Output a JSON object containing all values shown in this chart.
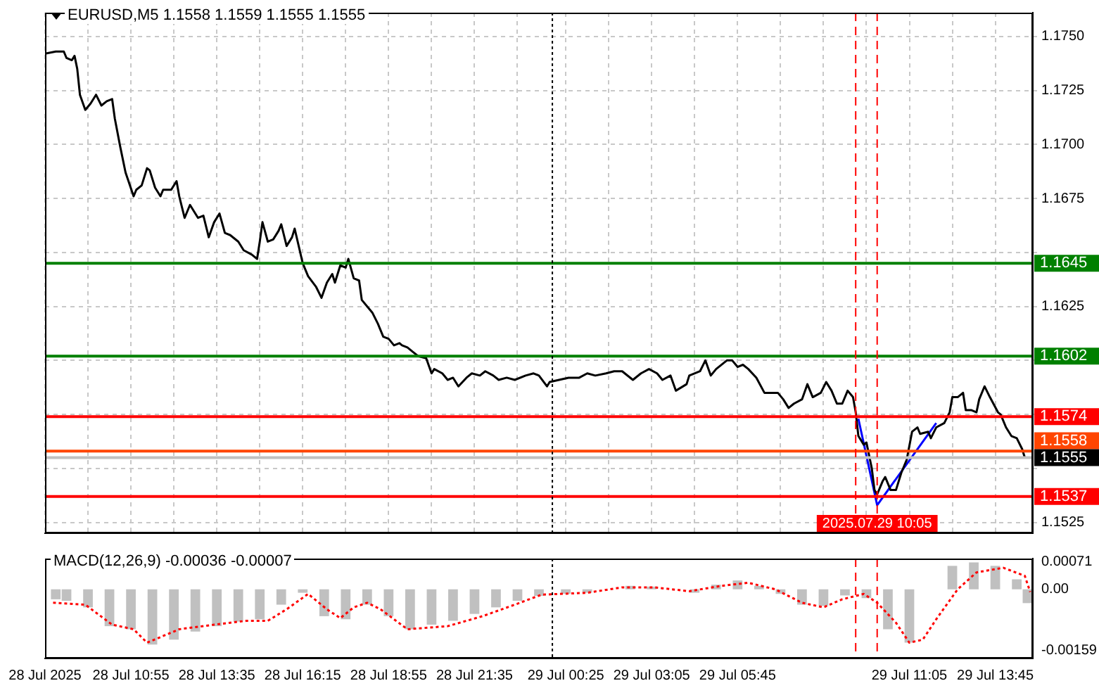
{
  "chart_data": [
    {
      "type": "line",
      "title": "EURUSD,M5 1.1558 1.1559 1.1555 1.1555",
      "grid": true,
      "tick_labels": "y",
      "xlim": [
        "2025-07-28T08:15",
        "2025-07-29T14:55"
      ],
      "ylim": [
        1.152,
        1.1761
      ],
      "xticks": [
        {
          "value": "2025-07-28T08:15",
          "label": null
        },
        {
          "value": "2025-07-28T09:35",
          "label": null
        },
        {
          "value": "2025-07-28T10:55",
          "label": null
        },
        {
          "value": "2025-07-28T12:15",
          "label": null
        },
        {
          "value": "2025-07-28T13:35",
          "label": null
        },
        {
          "value": "2025-07-28T14:55",
          "label": null
        },
        {
          "value": "2025-07-28T16:15",
          "label": null
        },
        {
          "value": "2025-07-28T17:35",
          "label": null
        },
        {
          "value": "2025-07-28T18:55",
          "label": null
        },
        {
          "value": "2025-07-28T20:15",
          "label": null
        },
        {
          "value": "2025-07-28T21:35",
          "label": null
        },
        {
          "value": "2025-07-28T22:55",
          "label": null
        },
        {
          "value": "2025-07-29T00:25",
          "label": null
        },
        {
          "value": "2025-07-29T01:45",
          "label": null
        },
        {
          "value": "2025-07-29T03:05",
          "label": null
        },
        {
          "value": "2025-07-29T04:25",
          "label": null
        },
        {
          "value": "2025-07-29T05:45",
          "label": null
        },
        {
          "value": "2025-07-29T07:05",
          "label": null
        },
        {
          "value": "2025-07-29T08:25",
          "label": null
        },
        {
          "value": "2025-07-29T09:45",
          "label": null
        },
        {
          "value": "2025-07-29T11:05",
          "label": null
        },
        {
          "value": "2025-07-29T12:25",
          "label": null
        },
        {
          "value": "2025-07-29T13:45",
          "label": null
        }
      ],
      "yticks": [
        {
          "value": 1.1525,
          "label": "1.1525"
        },
        {
          "value": 1.155,
          "label": null
        },
        {
          "value": 1.1575,
          "label": null
        },
        {
          "value": 1.16,
          "label": null
        },
        {
          "value": 1.1625,
          "label": "1.1625"
        },
        {
          "value": 1.165,
          "label": null
        },
        {
          "value": 1.1675,
          "label": "1.1675"
        },
        {
          "value": 1.17,
          "label": "1.1700"
        },
        {
          "value": 1.1725,
          "label": "1.1725"
        },
        {
          "value": 1.175,
          "label": "1.1750"
        }
      ],
      "series": [
        {
          "color": "#000000",
          "x": [
            "2025-07-28T08:15",
            "2025-07-28T08:35",
            "2025-07-28T08:50",
            "2025-07-28T08:55",
            "2025-07-28T09:05",
            "2025-07-28T09:10",
            "2025-07-28T09:15",
            "2025-07-28T09:20",
            "2025-07-28T09:30",
            "2025-07-28T09:40",
            "2025-07-28T09:50",
            "2025-07-28T10:00",
            "2025-07-28T10:10",
            "2025-07-28T10:20",
            "2025-07-28T10:25",
            "2025-07-28T10:35",
            "2025-07-28T10:45",
            "2025-07-28T11:00",
            "2025-07-28T11:05",
            "2025-07-28T11:15",
            "2025-07-28T11:25",
            "2025-07-28T11:30",
            "2025-07-28T11:40",
            "2025-07-28T11:50",
            "2025-07-28T11:55",
            "2025-07-28T12:10",
            "2025-07-28T12:20",
            "2025-07-28T12:25",
            "2025-07-28T12:35",
            "2025-07-28T12:45",
            "2025-07-28T13:00",
            "2025-07-28T13:10",
            "2025-07-28T13:20",
            "2025-07-28T13:30",
            "2025-07-28T13:40",
            "2025-07-28T13:50",
            "2025-07-28T14:00",
            "2025-07-28T14:15",
            "2025-07-28T14:25",
            "2025-07-28T14:40",
            "2025-07-28T14:50",
            "2025-07-28T14:55",
            "2025-07-28T15:00",
            "2025-07-28T15:10",
            "2025-07-28T15:20",
            "2025-07-28T15:30",
            "2025-07-28T15:35",
            "2025-07-28T15:45",
            "2025-07-28T15:55",
            "2025-07-28T16:00",
            "2025-07-28T16:15",
            "2025-07-28T16:25",
            "2025-07-28T16:40",
            "2025-07-28T16:50",
            "2025-07-28T17:00",
            "2025-07-28T17:10",
            "2025-07-28T17:15",
            "2025-07-28T17:25",
            "2025-07-28T17:35",
            "2025-07-28T17:40",
            "2025-07-28T17:50",
            "2025-07-28T18:00",
            "2025-07-28T18:05",
            "2025-07-28T18:25",
            "2025-07-28T18:35",
            "2025-07-28T18:45",
            "2025-07-28T18:55",
            "2025-07-28T19:05",
            "2025-07-28T19:15",
            "2025-07-28T19:20",
            "2025-07-28T19:30",
            "2025-07-28T19:40",
            "2025-07-28T19:50",
            "2025-07-28T20:05",
            "2025-07-28T20:15",
            "2025-07-28T20:20",
            "2025-07-28T20:35",
            "2025-07-28T20:45",
            "2025-07-28T20:55",
            "2025-07-28T21:05",
            "2025-07-28T21:20",
            "2025-07-28T21:30",
            "2025-07-28T21:45",
            "2025-07-28T21:55",
            "2025-07-28T22:10",
            "2025-07-28T22:20",
            "2025-07-28T22:35",
            "2025-07-28T22:50",
            "2025-07-28T23:10",
            "2025-07-28T23:25",
            "2025-07-28T23:35",
            "2025-07-28T23:50",
            "2025-07-28T23:55",
            "2025-07-29T00:30",
            "2025-07-29T00:50",
            "2025-07-29T01:05",
            "2025-07-29T01:20",
            "2025-07-29T01:40",
            "2025-07-29T01:55",
            "2025-07-29T02:10",
            "2025-07-29T02:30",
            "2025-07-29T02:45",
            "2025-07-29T03:00",
            "2025-07-29T03:15",
            "2025-07-29T03:25",
            "2025-07-29T03:40",
            "2025-07-29T03:50",
            "2025-07-29T04:10",
            "2025-07-29T04:15",
            "2025-07-29T04:35",
            "2025-07-29T04:45",
            "2025-07-29T04:55",
            "2025-07-29T05:05",
            "2025-07-29T05:25",
            "2025-07-29T05:35",
            "2025-07-29T05:45",
            "2025-07-29T05:55",
            "2025-07-29T06:05",
            "2025-07-29T06:20",
            "2025-07-29T06:35",
            "2025-07-29T06:45",
            "2025-07-29T07:00",
            "2025-07-29T07:10",
            "2025-07-29T07:20",
            "2025-07-29T07:30",
            "2025-07-29T07:45",
            "2025-07-29T07:55",
            "2025-07-29T08:05",
            "2025-07-29T08:20",
            "2025-07-29T08:30",
            "2025-07-29T08:40",
            "2025-07-29T08:50",
            "2025-07-29T09:00",
            "2025-07-29T09:10",
            "2025-07-29T09:20",
            "2025-07-29T09:25",
            "2025-07-29T09:30",
            "2025-07-29T09:40",
            "2025-07-29T09:45",
            "2025-07-29T09:55",
            "2025-07-29T10:00",
            "2025-07-29T10:05",
            "2025-07-29T10:15",
            "2025-07-29T10:20",
            "2025-07-29T10:30",
            "2025-07-29T10:40",
            "2025-07-29T10:50",
            "2025-07-29T11:00",
            "2025-07-29T11:10",
            "2025-07-29T11:20",
            "2025-07-29T11:25",
            "2025-07-29T11:40",
            "2025-07-29T11:45",
            "2025-07-29T11:55",
            "2025-07-29T12:10",
            "2025-07-29T12:20",
            "2025-07-29T12:25",
            "2025-07-29T12:35",
            "2025-07-29T12:45",
            "2025-07-29T12:50",
            "2025-07-29T13:00",
            "2025-07-29T13:10",
            "2025-07-29T13:15",
            "2025-07-29T13:25",
            "2025-07-29T13:35",
            "2025-07-29T13:50",
            "2025-07-29T13:55",
            "2025-07-29T14:05",
            "2025-07-29T14:15",
            "2025-07-29T14:25",
            "2025-07-29T14:35",
            "2025-07-29T14:40"
          ],
          "values": [
            1.1742,
            1.1743,
            1.1743,
            1.174,
            1.1739,
            1.1741,
            1.1735,
            1.1723,
            1.1716,
            1.1719,
            1.1723,
            1.1718,
            1.172,
            1.1721,
            1.1712,
            1.1699,
            1.1687,
            1.1676,
            1.1679,
            1.1681,
            1.1689,
            1.1688,
            1.168,
            1.1676,
            1.1679,
            1.1679,
            1.1683,
            1.1676,
            1.1666,
            1.1672,
            1.1666,
            1.1667,
            1.1657,
            1.1664,
            1.1668,
            1.1659,
            1.1658,
            1.1655,
            1.1651,
            1.1649,
            1.1647,
            1.1655,
            1.1664,
            1.1655,
            1.1656,
            1.166,
            1.1663,
            1.1653,
            1.1657,
            1.1661,
            1.1645,
            1.1639,
            1.1634,
            1.1629,
            1.1636,
            1.164,
            1.1636,
            1.1644,
            1.1643,
            1.1647,
            1.1638,
            1.1637,
            1.1628,
            1.1622,
            1.1617,
            1.1611,
            1.161,
            1.1607,
            1.1608,
            1.1607,
            1.1606,
            1.1604,
            1.1602,
            1.1601,
            1.1594,
            1.1596,
            1.1594,
            1.1591,
            1.1592,
            1.1588,
            1.1592,
            1.1594,
            1.1593,
            1.1595,
            1.1593,
            1.1591,
            1.1592,
            1.1591,
            1.1593,
            1.1594,
            1.1593,
            1.1588,
            1.159,
            1.1592,
            1.1592,
            1.1594,
            1.1593,
            1.1594,
            1.1595,
            1.1595,
            1.1591,
            1.1594,
            1.1596,
            1.1594,
            1.1591,
            1.1593,
            1.1586,
            1.1589,
            1.1593,
            1.1595,
            1.16,
            1.1593,
            1.1596,
            1.16,
            1.16,
            1.1597,
            1.1598,
            1.1596,
            1.1592,
            1.1585,
            1.1585,
            1.1585,
            1.1582,
            1.1578,
            1.158,
            1.1582,
            1.1589,
            1.1583,
            1.1585,
            1.159,
            1.1586,
            1.158,
            1.158,
            1.1586,
            1.1583,
            1.1576,
            1.1565,
            1.1561,
            1.1562,
            1.155,
            1.154,
            1.1538,
            1.1544,
            1.1546,
            1.154,
            1.154,
            1.1548,
            1.1554,
            1.1567,
            1.1569,
            1.1566,
            1.1567,
            1.1564,
            1.1569,
            1.1571,
            1.1576,
            1.1583,
            1.1583,
            1.1585,
            1.1577,
            1.1577,
            1.1576,
            1.1582,
            1.1588,
            1.1583,
            1.1576,
            1.1575,
            1.1569,
            1.1565,
            1.1564,
            1.1559,
            1.1555
          ]
        },
        {
          "color": "#0000ff",
          "x": [
            "2025-07-29T09:30",
            "2025-07-29T10:05",
            "2025-07-29T11:55"
          ],
          "values": [
            1.1573,
            1.1533,
            1.1571
          ]
        }
      ],
      "ref_lines": [
        {
          "axis": "y",
          "value": 1.1645,
          "label": "1.1645",
          "color": "#008000"
        },
        {
          "axis": "y",
          "value": 1.1602,
          "label": "1.1602",
          "color": "#008000"
        },
        {
          "axis": "y",
          "value": 1.1574,
          "label": "1.1574",
          "color": "#ff0000"
        },
        {
          "axis": "y",
          "value": 1.1558,
          "label": "1.1558",
          "color": "#ff4500"
        },
        {
          "axis": "y",
          "value": 1.1555,
          "label": "1.1555",
          "color": "#c0c0c0"
        },
        {
          "axis": "y",
          "value": 1.1537,
          "label": "1.1537",
          "color": "#ff0000"
        },
        {
          "axis": "x",
          "value": "2025-07-29T00:00",
          "color": "#000000",
          "line_style": "dotted"
        },
        {
          "axis": "x",
          "value": "2025-07-29T09:25",
          "color": "#ff0000",
          "line_style": "dashed"
        },
        {
          "axis": "x",
          "value": "2025-07-29T10:05",
          "label": "2025.07.29 10:05",
          "color": "#ff0000",
          "line_style": "dashed"
        }
      ]
    },
    {
      "type": "bar",
      "title": "MACD(12,26,9) -0.00036 -0.00007",
      "xlim": [
        "2025-07-28T08:15",
        "2025-07-29T14:55"
      ],
      "ylim": [
        -0.0018,
        0.0008
      ],
      "xticks": [
        {
          "value": "2025-07-28T08:15",
          "label": "28 Jul 2025"
        },
        {
          "value": "2025-07-28T10:55",
          "label": "28 Jul 10:55"
        },
        {
          "value": "2025-07-28T13:35",
          "label": "28 Jul 13:35"
        },
        {
          "value": "2025-07-28T16:15",
          "label": "28 Jul 16:15"
        },
        {
          "value": "2025-07-28T18:55",
          "label": "28 Jul 18:55"
        },
        {
          "value": "2025-07-28T21:35",
          "label": "28 Jul 21:35"
        },
        {
          "value": "2025-07-29T00:25",
          "label": "29 Jul 00:25"
        },
        {
          "value": "2025-07-29T03:05",
          "label": "29 Jul 03:05"
        },
        {
          "value": "2025-07-29T05:45",
          "label": "29 Jul 05:45"
        },
        {
          "value": "2025-07-29T11:05",
          "label": "29 Jul 11:05"
        },
        {
          "value": "2025-07-29T13:45",
          "label": "29 Jul 13:45"
        }
      ],
      "yticks": [
        {
          "value": 0.00071,
          "label": "0.00071"
        },
        {
          "value": 0,
          "label": "0.00"
        },
        {
          "value": -0.00159,
          "label": "-0.00159"
        }
      ],
      "series": [
        {
          "type": "bar",
          "color": "#c0c0c0",
          "x": [
            "2025-07-28T08:35",
            "2025-07-28T08:55",
            "2025-07-28T09:35",
            "2025-07-28T10:15",
            "2025-07-28T10:55",
            "2025-07-28T11:35",
            "2025-07-28T12:15",
            "2025-07-28T12:55",
            "2025-07-28T13:35",
            "2025-07-28T14:15",
            "2025-07-28T14:55",
            "2025-07-28T15:35",
            "2025-07-28T16:15",
            "2025-07-28T16:55",
            "2025-07-28T17:35",
            "2025-07-28T18:15",
            "2025-07-28T18:55",
            "2025-07-28T19:35",
            "2025-07-28T20:15",
            "2025-07-28T20:55",
            "2025-07-28T21:35",
            "2025-07-28T22:15",
            "2025-07-28T22:55",
            "2025-07-28T23:35",
            "2025-07-29T00:25",
            "2025-07-29T01:05",
            "2025-07-29T01:45",
            "2025-07-29T02:25",
            "2025-07-29T03:05",
            "2025-07-29T03:45",
            "2025-07-29T04:25",
            "2025-07-29T05:05",
            "2025-07-29T05:45",
            "2025-07-29T06:25",
            "2025-07-29T07:05",
            "2025-07-29T07:45",
            "2025-07-29T08:25",
            "2025-07-29T09:05",
            "2025-07-29T09:45",
            "2025-07-29T10:25",
            "2025-07-29T11:05",
            "2025-07-29T11:45",
            "2025-07-29T12:25",
            "2025-07-29T13:05",
            "2025-07-29T13:45",
            "2025-07-29T14:25",
            "2025-07-29T14:45"
          ],
          "values": [
            -0.00026,
            -0.0003,
            -0.00047,
            -0.00096,
            -0.00104,
            -0.00144,
            -0.00131,
            -0.0011,
            -0.00096,
            -0.00084,
            -0.00078,
            -0.0004,
            -9e-05,
            -0.0007,
            -0.00078,
            -0.0004,
            -0.0007,
            -0.00104,
            -0.00092,
            -0.00082,
            -0.00064,
            -0.00047,
            -0.0003,
            -0.00017,
            -0.00012,
            -9e-05,
            null,
            9e-05,
            7e-05,
            null,
            -9e-05,
            0.00012,
            0.00023,
            9e-05,
            -0.00012,
            -0.0004,
            -0.00043,
            -0.00016,
            -0.00023,
            -0.00104,
            -0.00139,
            null,
            0.00061,
            0.0007,
            0.00061,
            0.00026,
            -0.00036
          ]
        },
        {
          "type": "line",
          "color": "#ff0000",
          "line_style": "dotted",
          "x": [
            "2025-07-28T08:30",
            "2025-07-28T09:30",
            "2025-07-28T10:20",
            "2025-07-28T11:00",
            "2025-07-28T11:25",
            "2025-07-28T12:25",
            "2025-07-28T13:30",
            "2025-07-28T14:30",
            "2025-07-28T15:10",
            "2025-07-28T15:45",
            "2025-07-28T16:25",
            "2025-07-28T17:00",
            "2025-07-28T17:25",
            "2025-07-28T17:50",
            "2025-07-28T18:15",
            "2025-07-28T18:40",
            "2025-07-28T19:30",
            "2025-07-28T20:45",
            "2025-07-28T21:50",
            "2025-07-28T22:50",
            "2025-07-28T23:40",
            "2025-07-29T01:05",
            "2025-07-29T02:10",
            "2025-07-29T03:10",
            "2025-07-29T04:15",
            "2025-07-29T05:15",
            "2025-07-29T06:05",
            "2025-07-29T06:55",
            "2025-07-29T07:45",
            "2025-07-29T08:25",
            "2025-07-29T09:00",
            "2025-07-29T09:40",
            "2025-07-29T10:05",
            "2025-07-29T10:40",
            "2025-07-29T11:05",
            "2025-07-29T11:30",
            "2025-07-29T11:55",
            "2025-07-29T12:35",
            "2025-07-29T13:10",
            "2025-07-29T14:00",
            "2025-07-29T14:40",
            "2025-07-29T14:50"
          ],
          "values": [
            -0.00035,
            -0.0004,
            -0.00092,
            -0.00104,
            -0.00139,
            -0.00104,
            -0.00092,
            -0.00082,
            -0.00082,
            -0.00052,
            -0.00012,
            -0.00052,
            -0.00075,
            -0.00047,
            -0.00035,
            -0.00052,
            -0.00104,
            -0.00096,
            -0.0007,
            -0.0004,
            -0.00014,
            -9e-05,
            5e-05,
            5e-05,
            -5e-05,
            9e-05,
            0.00017,
            0.0,
            -0.00035,
            -0.00047,
            -0.00026,
            -0.00012,
            -0.00035,
            -0.00087,
            -0.00139,
            -0.00131,
            -0.00078,
            0.0,
            0.00044,
            0.00056,
            0.00035,
            -7e-05
          ]
        }
      ],
      "ref_lines": [
        {
          "axis": "x",
          "value": "2025-07-29T00:00",
          "color": "#000000",
          "line_style": "dotted"
        },
        {
          "axis": "x",
          "value": "2025-07-29T09:25",
          "color": "#ff0000",
          "line_style": "dashed"
        },
        {
          "axis": "x",
          "value": "2025-07-29T10:05",
          "color": "#ff0000",
          "line_style": "dashed"
        }
      ]
    }
  ]
}
